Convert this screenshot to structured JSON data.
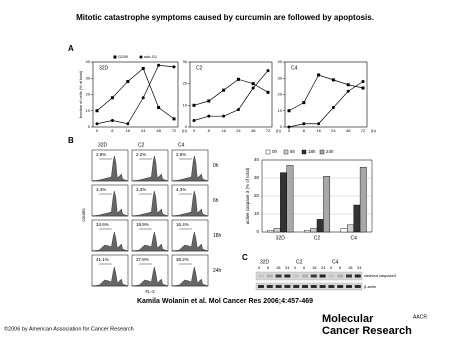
{
  "title": "Mitotic catastrophe symptoms caused by curcumin are followed by apoptosis.",
  "panels": {
    "A": "A",
    "B": "B",
    "C": "C"
  },
  "chart_data": [
    {
      "type": "line",
      "subtitle": "32D",
      "y_label": "fraction of cells (% of total)",
      "x_label": "(h)",
      "categories": [
        "0",
        "8",
        "16",
        "24",
        "48",
        "72"
      ],
      "ylim": [
        0,
        40
      ],
      "yticks": [
        0,
        10,
        20,
        30,
        40
      ],
      "series": [
        {
          "name": "G2/M",
          "color": "#000000",
          "marker": "square",
          "values": [
            10,
            18,
            28,
            36,
            12,
            5
          ]
        },
        {
          "name": "sub-G1",
          "color": "#000000",
          "marker": "circle",
          "values": [
            2,
            4,
            2,
            18,
            38,
            37
          ]
        }
      ]
    },
    {
      "type": "line",
      "subtitle": "C2",
      "x_label": "(h)",
      "categories": [
        "0",
        "8",
        "16",
        "24",
        "48",
        "72"
      ],
      "ylim": [
        0,
        30
      ],
      "yticks": [
        0,
        10,
        20,
        30
      ],
      "series": [
        {
          "color": "#000000",
          "marker": "square",
          "values": [
            10,
            12,
            17,
            22,
            20,
            16
          ]
        },
        {
          "color": "#000000",
          "marker": "circle",
          "values": [
            3,
            5,
            5,
            8,
            18,
            26
          ]
        }
      ]
    },
    {
      "type": "line",
      "subtitle": "C4",
      "x_label": "(h)",
      "categories": [
        "0",
        "8",
        "16",
        "24",
        "48",
        "72"
      ],
      "ylim": [
        0,
        40
      ],
      "yticks": [
        0,
        10,
        20,
        30,
        40
      ],
      "series": [
        {
          "color": "#000000",
          "marker": "square",
          "values": [
            10,
            15,
            32,
            29,
            26,
            24
          ]
        },
        {
          "color": "#000000",
          "marker": "circle",
          "values": [
            0,
            2,
            2,
            12,
            22,
            28
          ]
        }
      ]
    },
    {
      "type": "bar",
      "y_label": "active caspase 3 (% of total)",
      "categories": [
        "32D",
        "C2",
        "C4"
      ],
      "ylim": [
        0,
        40
      ],
      "yticks": [
        0,
        10,
        20,
        30,
        40
      ],
      "grid": true,
      "series": [
        {
          "name": "0h",
          "color": "#ffffff",
          "values": [
            1,
            1,
            2
          ]
        },
        {
          "name": "6h",
          "color": "#d0d0d0",
          "values": [
            2,
            2,
            4
          ]
        },
        {
          "name": "18h",
          "color": "#333333",
          "values": [
            33,
            7,
            15
          ]
        },
        {
          "name": "24h",
          "color": "#a8a8a8",
          "values": [
            37,
            31,
            36
          ]
        }
      ]
    }
  ],
  "histograms": {
    "columns": [
      "32D",
      "C2",
      "C4"
    ],
    "rows": [
      "0h",
      "6h",
      "18h",
      "24h"
    ],
    "percents": [
      [
        "2.9%",
        "2.2%",
        "2.6%"
      ],
      [
        "3.4%",
        "3.3%",
        "4.3%"
      ],
      [
        "34.6%",
        "19.9%",
        "16.4%"
      ],
      [
        "41.1%",
        "37.8%",
        "38.2%"
      ]
    ],
    "y_label": "counts",
    "x_label": "FL-2"
  },
  "blot": {
    "groups": [
      "32D",
      "C2",
      "C4"
    ],
    "times": [
      "0",
      "6",
      "18",
      "24"
    ],
    "bands": [
      "cleaved caspase3",
      "β-actin"
    ]
  },
  "citation": "Kamila Wolanin et al. Mol Cancer Res 2006;4:457-469",
  "copyright": "©2006 by American Association for Cancer Research",
  "logo": {
    "mark": "AACR",
    "lines": [
      "Molecular",
      "Cancer Research"
    ]
  }
}
